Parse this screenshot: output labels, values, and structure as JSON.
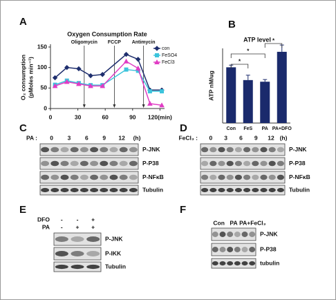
{
  "chart_data": [
    {
      "type": "line",
      "panel_label": "A",
      "title": "Oxygen Consumption Rate",
      "y_label": [
        "O₂ consumption",
        "(pMoles min⁻¹)"
      ],
      "x": [
        5,
        18,
        31,
        44,
        57,
        83,
        96,
        109,
        122
      ],
      "series": [
        {
          "name": "con",
          "color": "#1f2f6e",
          "marker": "diamond",
          "values": [
            75,
            100,
            97,
            80,
            83,
            132,
            120,
            45,
            45
          ]
        },
        {
          "name": "FeSO4",
          "color": "#3cc4dc",
          "marker": "square",
          "values": [
            58,
            68,
            62,
            57,
            57,
            95,
            92,
            42,
            42
          ]
        },
        {
          "name": "FeCl3",
          "color": "#e03cc4",
          "marker": "triangle",
          "values": [
            55,
            65,
            60,
            55,
            55,
            115,
            98,
            12,
            8
          ]
        }
      ],
      "xlim": [
        0,
        125
      ],
      "xticks": [
        0,
        30,
        60,
        90,
        {
          "value": 120,
          "label": "120(min)"
        }
      ],
      "ylim": [
        0,
        150
      ],
      "yticks": [
        0,
        50,
        100,
        150
      ],
      "annotations": [
        {
          "text": "Oligomycin",
          "x": 37
        },
        {
          "text": "FCCP",
          "x": 70
        },
        {
          "text": "Antimycin",
          "x": 102
        }
      ],
      "legend": "upper right"
    },
    {
      "type": "bar",
      "panel_label": "B",
      "title": "ATP level",
      "y_label": "ATP nM/ug",
      "categories": [
        "Con",
        "FeS",
        "PA",
        "PA+DFO"
      ],
      "values": [
        205,
        158,
        152,
        262
      ],
      "errors": [
        8,
        18,
        8,
        25
      ],
      "color": "#1a2a6c",
      "ylim": [
        0,
        300
      ],
      "significance": [
        {
          "pair": [
            0,
            1
          ],
          "label": "*"
        },
        {
          "pair": [
            0,
            2
          ],
          "label": "*"
        },
        {
          "pair": [
            2,
            3
          ],
          "label": "*"
        }
      ]
    }
  ],
  "blots": [
    {
      "panel_label": "C",
      "treatment": "PA :",
      "lanes": [
        "0",
        "3",
        "6",
        "9",
        "12"
      ],
      "unit": "(h)",
      "rows": [
        "P-JNK",
        "P-P38",
        "P-NFκB",
        "Tubulin"
      ]
    },
    {
      "panel_label": "D",
      "treatment": "FeCl₃ :",
      "lanes": [
        "0",
        "3",
        "6",
        "9",
        "12"
      ],
      "unit": "(h)",
      "rows": [
        "P-JNK",
        "P-P38",
        "P-NFκB",
        "Tubulin"
      ]
    },
    {
      "panel_label": "E",
      "conditions": [
        {
          "name": "DFO",
          "signs": [
            "-",
            "-",
            "+"
          ]
        },
        {
          "name": "PA",
          "signs": [
            "-",
            "+",
            "+"
          ]
        }
      ],
      "rows": [
        "P-JNK",
        "P-IKK",
        "Tubulin"
      ]
    },
    {
      "panel_label": "F",
      "groups": [
        "Con",
        "PA",
        "PA+FeCl₃"
      ],
      "rows": [
        "P-JNK",
        "P-P38",
        "tubulin"
      ]
    }
  ]
}
